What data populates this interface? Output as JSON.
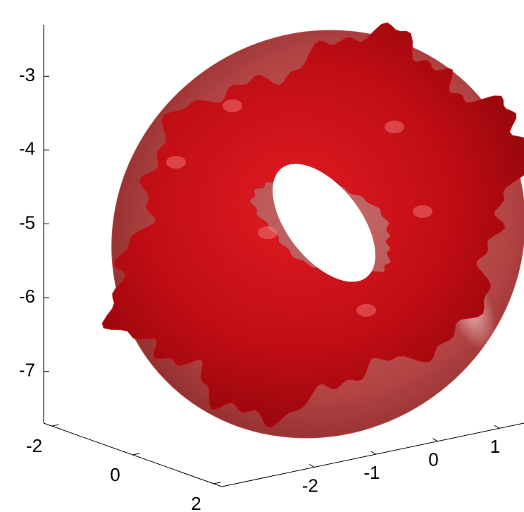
{
  "chart_data": {
    "type": "surface3d",
    "xlim": [
      -3.5,
      1.4
    ],
    "xticks": [
      -2,
      -1,
      0,
      1
    ],
    "ylim": [
      -2.2,
      2.2
    ],
    "yticks": [
      -2,
      0,
      2
    ],
    "zlim": [
      -7.7,
      -2.3
    ],
    "zticks": [
      -3,
      -4,
      -5,
      -6,
      -7
    ],
    "color": "#c8101a",
    "shell_color": "#b84a4a"
  }
}
